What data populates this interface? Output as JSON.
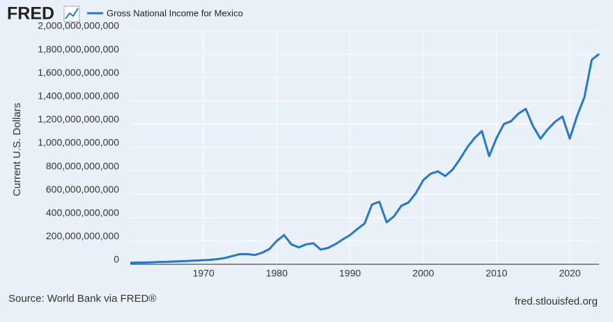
{
  "chart_data": {
    "type": "line",
    "logo": "FRED",
    "ylabel": "Current U.S. Dollars",
    "source": "Source: World Bank via FRED®",
    "site": "fred.stlouisfed.org",
    "x": [
      1960,
      1961,
      1962,
      1963,
      1964,
      1965,
      1966,
      1967,
      1968,
      1969,
      1970,
      1971,
      1972,
      1973,
      1974,
      1975,
      1976,
      1977,
      1978,
      1979,
      1980,
      1981,
      1982,
      1983,
      1984,
      1985,
      1986,
      1987,
      1988,
      1989,
      1990,
      1991,
      1992,
      1993,
      1994,
      1995,
      1996,
      1997,
      1998,
      1999,
      2000,
      2001,
      2002,
      2003,
      2004,
      2005,
      2006,
      2007,
      2008,
      2009,
      2010,
      2011,
      2012,
      2013,
      2014,
      2015,
      2016,
      2017,
      2018,
      2019,
      2020,
      2021,
      2022,
      2023,
      2024
    ],
    "series": [
      {
        "name": "Gross National Income for Mexico",
        "color": "#1f77d6",
        "values": [
          13000000000,
          14000000000,
          15000000000,
          17000000000,
          20000000000,
          21000000000,
          24000000000,
          26000000000,
          29000000000,
          32000000000,
          35000000000,
          39000000000,
          45000000000,
          55000000000,
          72000000000,
          87000000000,
          87000000000,
          79000000000,
          99000000000,
          131000000000,
          200000000000,
          250000000000,
          170000000000,
          145000000000,
          170000000000,
          180000000000,
          126000000000,
          140000000000,
          172000000000,
          212000000000,
          250000000000,
          302000000000,
          350000000000,
          512000000000,
          535000000000,
          360000000000,
          410000000000,
          500000000000,
          530000000000,
          610000000000,
          720000000000,
          775000000000,
          795000000000,
          755000000000,
          810000000000,
          900000000000,
          1000000000000,
          1080000000000,
          1140000000000,
          925000000000,
          1080000000000,
          1200000000000,
          1225000000000,
          1290000000000,
          1330000000000,
          1180000000000,
          1075000000000,
          1155000000000,
          1220000000000,
          1265000000000,
          1075000000000,
          1270000000000,
          1430000000000,
          1750000000000,
          1800000000000
        ]
      }
    ],
    "xlim": [
      1960,
      2024
    ],
    "xticks": [
      1970,
      1980,
      1990,
      2000,
      2010,
      2020
    ],
    "ylim": [
      0,
      2000000000000
    ],
    "yticks": [
      0,
      {
        "value": 200000000000,
        "label": "200,000,000,000"
      },
      {
        "value": 400000000000,
        "label": "400,000,000,000"
      },
      {
        "value": 600000000000,
        "label": "600,000,000,000"
      },
      {
        "value": 800000000000,
        "label": "800,000,000,000"
      },
      {
        "value": 1000000000000,
        "label": "1,000,000,000,000"
      },
      {
        "value": 1200000000000,
        "label": "1,200,000,000,000"
      },
      {
        "value": 1400000000000,
        "label": "1,400,000,000,000"
      },
      {
        "value": 1600000000000,
        "label": "1,600,000,000,000"
      },
      {
        "value": 1800000000000,
        "label": "1,800,000,000,000"
      },
      {
        "value": 2000000000000,
        "label": "2,000,000,000,000"
      }
    ],
    "grid": true
  }
}
